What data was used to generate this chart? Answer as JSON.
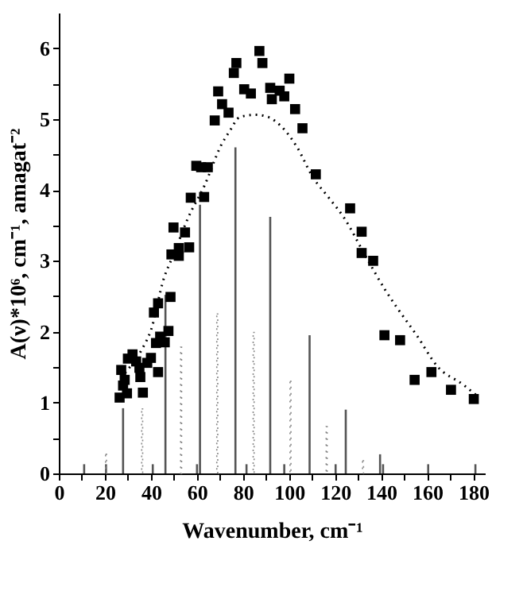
{
  "chart_data": {
    "type": "scatter",
    "xlabel": "Wavenumber, cm⁻¹",
    "ylabel": "A(ν)*10⁶, cm⁻¹, amagat⁻²",
    "xlim": [
      0,
      185
    ],
    "ylim": [
      0,
      6.5
    ],
    "xticks": [
      0,
      {
        "value": 10,
        "label": null
      },
      20,
      {
        "value": 30,
        "label": null
      },
      40,
      {
        "value": 50,
        "label": null
      },
      60,
      {
        "value": 70,
        "label": null
      },
      80,
      {
        "value": 90,
        "label": null
      },
      100,
      {
        "value": 110,
        "label": null
      },
      120,
      {
        "value": 130,
        "label": null
      },
      140,
      {
        "value": 150,
        "label": null
      },
      160,
      {
        "value": 170,
        "label": null
      },
      180
    ],
    "yticks": [
      0,
      {
        "value": 0.5,
        "label": null
      },
      1,
      {
        "value": 1.5,
        "label": null
      },
      2,
      {
        "value": 2.5,
        "label": null
      },
      3,
      {
        "value": 3.5,
        "label": null
      },
      4,
      {
        "value": 4.5,
        "label": null
      },
      5,
      {
        "value": 5.5,
        "label": null
      },
      6
    ],
    "grid": false,
    "series": [
      {
        "type": "bar",
        "line_style": "solid",
        "color": "#555555",
        "x": [
          11,
          20.5,
          27.9,
          40.8,
          46.3,
          60,
          61.3,
          76.7,
          81.5,
          91.8,
          97.9,
          108.9,
          120.2,
          124.6,
          139.5,
          140.8,
          160.4,
          180.9
        ],
        "values": [
          0.13,
          0.13,
          0.92,
          0.13,
          2.52,
          0.13,
          3.79,
          4.6,
          0.13,
          3.62,
          0.13,
          1.95,
          0.13,
          0.9,
          0.27,
          0.13,
          0.13,
          0.13
        ]
      },
      {
        "type": "bar",
        "line_style": "dotted",
        "color": "#888888",
        "x": [
          20.5,
          36.2,
          53.1,
          68.8,
          84.6,
          100.6,
          116.3,
          132.1
        ],
        "values": [
          0.27,
          0.91,
          1.78,
          2.25,
          1.99,
          1.3,
          0.66,
          0.18
        ]
      },
      {
        "type": "line",
        "line_style": "dotted",
        "color": "#000000",
        "x": [
          27,
          32,
          35.9,
          40.1,
          45.5,
          50,
          56.2,
          63.1,
          70.8,
          74.2,
          78.7,
          85.5,
          89.9,
          96.8,
          103.5,
          110.3,
          117,
          123.8,
          132.8,
          141.9,
          146.4,
          155.4,
          164.4,
          175.7,
          181.4
        ],
        "values": [
          1.35,
          1.55,
          1.74,
          2.03,
          2.74,
          3.1,
          3.61,
          4.05,
          4.65,
          4.83,
          5.03,
          5.06,
          5.04,
          4.89,
          4.6,
          4.18,
          3.9,
          3.61,
          3.09,
          2.58,
          2.36,
          1.95,
          1.51,
          1.25,
          1.1
        ]
      },
      {
        "marker": "square",
        "color": "#000000",
        "x": [
          26.4,
          27.1,
          27.9,
          28.6,
          29.6,
          30,
          32,
          33.6,
          35,
          35.4,
          36.5,
          38.4,
          40,
          41.3,
          42.2,
          43.1,
          43.1,
          44,
          46,
          47.6,
          48.5,
          48.9,
          49.8,
          52.1,
          52.1,
          54.8,
          56.6,
          57.3,
          59.7,
          61.8,
          63.1,
          64.7,
          67.7,
          69.2,
          70.9,
          73.7,
          76,
          77.1,
          80.5,
          83.4,
          87.1,
          88.4,
          91.8,
          92.5,
          95.9,
          97.9,
          100.1,
          102.6,
          105.8,
          111.6,
          126.5,
          131.5,
          131.5,
          136.5,
          141.4,
          148.2,
          154.5,
          161.8,
          170.3,
          180.2
        ],
        "values": [
          1.07,
          1.46,
          1.24,
          1.32,
          1.13,
          1.62,
          1.68,
          1.58,
          1.49,
          1.36,
          1.14,
          1.56,
          1.63,
          2.27,
          1.84,
          2.4,
          1.43,
          1.93,
          1.85,
          2.01,
          2.49,
          3.09,
          3.47,
          3.18,
          3.07,
          3.4,
          3.19,
          3.89,
          4.34,
          4.32,
          3.9,
          4.32,
          4.98,
          5.39,
          5.21,
          5.09,
          5.65,
          5.79,
          5.42,
          5.36,
          5.96,
          5.79,
          5.44,
          5.28,
          5.4,
          5.32,
          5.57,
          5.14,
          4.87,
          4.22,
          3.74,
          3.41,
          3.11,
          3.0,
          1.95,
          1.88,
          1.32,
          1.43,
          1.18,
          1.05
        ]
      }
    ]
  }
}
